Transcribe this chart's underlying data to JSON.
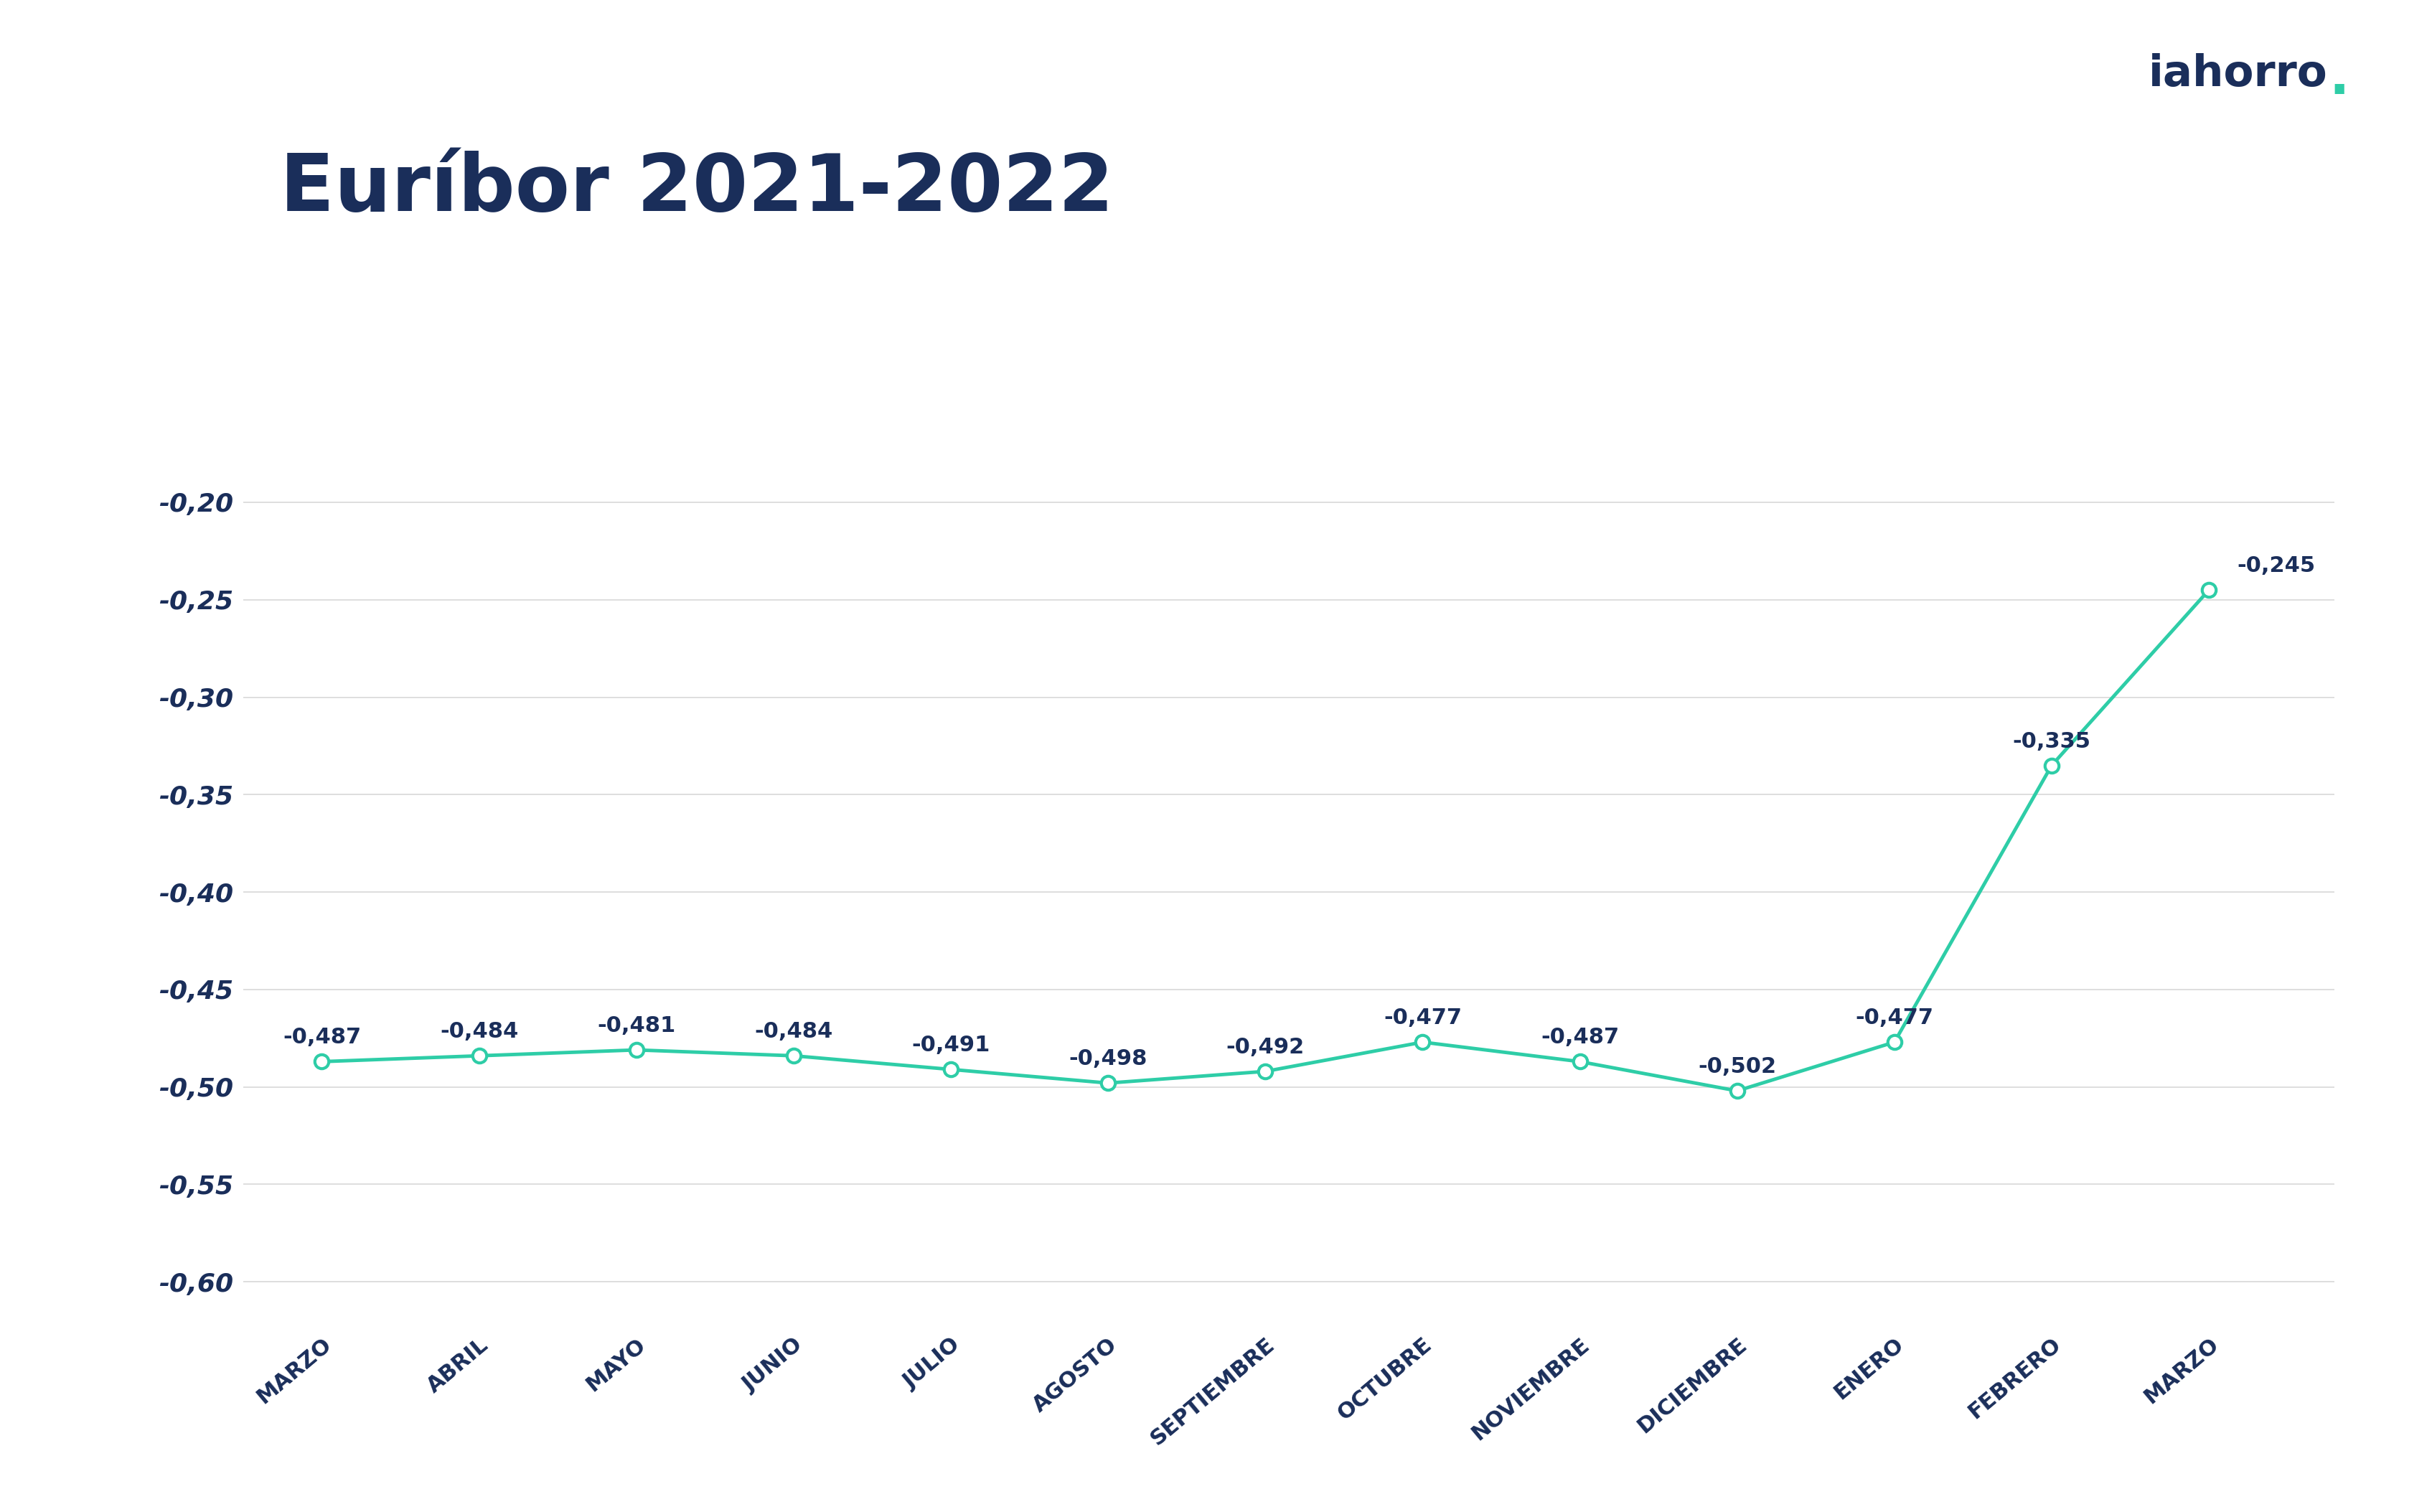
{
  "title": "Euríbor 2021-2022",
  "title_color": "#1a2e5a",
  "title_bar_color": "#2ecda7",
  "logo_text": "iahorro",
  "logo_dot": ".",
  "logo_color": "#1a2e5a",
  "logo_dot_color": "#2ecda7",
  "categories": [
    "MARZO",
    "ABRIL",
    "MAYO",
    "JUNIO",
    "JULIO",
    "AGOSTO",
    "SEPTIEMBRE",
    "OCTUBRE",
    "NOVIEMBRE",
    "DICIEMBRE",
    "ENERO",
    "FEBRERO",
    "MARZO"
  ],
  "values": [
    -0.487,
    -0.484,
    -0.481,
    -0.484,
    -0.491,
    -0.498,
    -0.492,
    -0.477,
    -0.487,
    -0.502,
    -0.477,
    -0.335,
    -0.245
  ],
  "labels": [
    "-0,487",
    "-0,484",
    "-0,481",
    "-0,484",
    "-0,491",
    "-0,498",
    "-0,492",
    "-0,477",
    "-0,487",
    "-0,502",
    "-0,477",
    "-0,335",
    "-0,245"
  ],
  "line_color": "#2ecda7",
  "marker_color": "#2ecda7",
  "marker_face_color": "#ffffff",
  "label_color": "#1a2e5a",
  "grid_color": "#d8d8d8",
  "background_color": "#ffffff",
  "ylim": [
    -0.625,
    -0.175
  ],
  "yticks": [
    -0.2,
    -0.25,
    -0.3,
    -0.35,
    -0.4,
    -0.45,
    -0.5,
    -0.55,
    -0.6
  ],
  "ytick_labels": [
    "-0,20",
    "-0,25",
    "-0,30",
    "-0,35",
    "-0,40",
    "-0,45",
    "-0,50",
    "-0,55",
    "-0,60"
  ],
  "title_fontsize": 80,
  "label_fontsize": 22,
  "tick_fontsize": 26,
  "xtick_fontsize": 22,
  "line_width": 3.5,
  "marker_size": 14,
  "xtick_rotation": 40
}
